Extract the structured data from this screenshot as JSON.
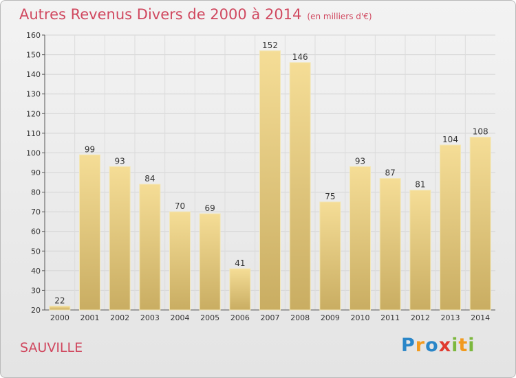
{
  "header": {
    "title": "Autres Revenus Divers de 2000 à 2014",
    "unit": "(en milliers d'€)"
  },
  "footer": {
    "town": "SAUVILLE",
    "logo": "Proxiti",
    "logo_letters": [
      {
        "ch": "P",
        "color": "#2a86c8"
      },
      {
        "ch": "r",
        "color": "#f29a1e"
      },
      {
        "ch": "o",
        "color": "#2a86c8"
      },
      {
        "ch": "x",
        "color": "#e03a2e"
      },
      {
        "ch": "i",
        "color": "#7cb83d"
      },
      {
        "ch": "t",
        "color": "#f29a1e"
      },
      {
        "ch": "i",
        "color": "#7cb83d"
      }
    ]
  },
  "chart_data": {
    "type": "bar",
    "categories": [
      "2000",
      "2001",
      "2002",
      "2003",
      "2004",
      "2005",
      "2006",
      "2007",
      "2008",
      "2009",
      "2010",
      "2011",
      "2012",
      "2013",
      "2014"
    ],
    "values": [
      22,
      99,
      93,
      84,
      70,
      69,
      41,
      152,
      146,
      75,
      93,
      87,
      81,
      104,
      108
    ],
    "title": "Autres Revenus Divers de 2000 à 2014",
    "xlabel": "",
    "ylabel": "",
    "ylim": [
      20,
      160
    ],
    "yticks": [
      20,
      30,
      40,
      50,
      60,
      70,
      80,
      90,
      100,
      110,
      120,
      130,
      140,
      150,
      160
    ],
    "grid": true,
    "bar_color_top": "#f5dd96",
    "bar_color_bottom": "#c9ad62",
    "title_color": "#d0485f"
  }
}
